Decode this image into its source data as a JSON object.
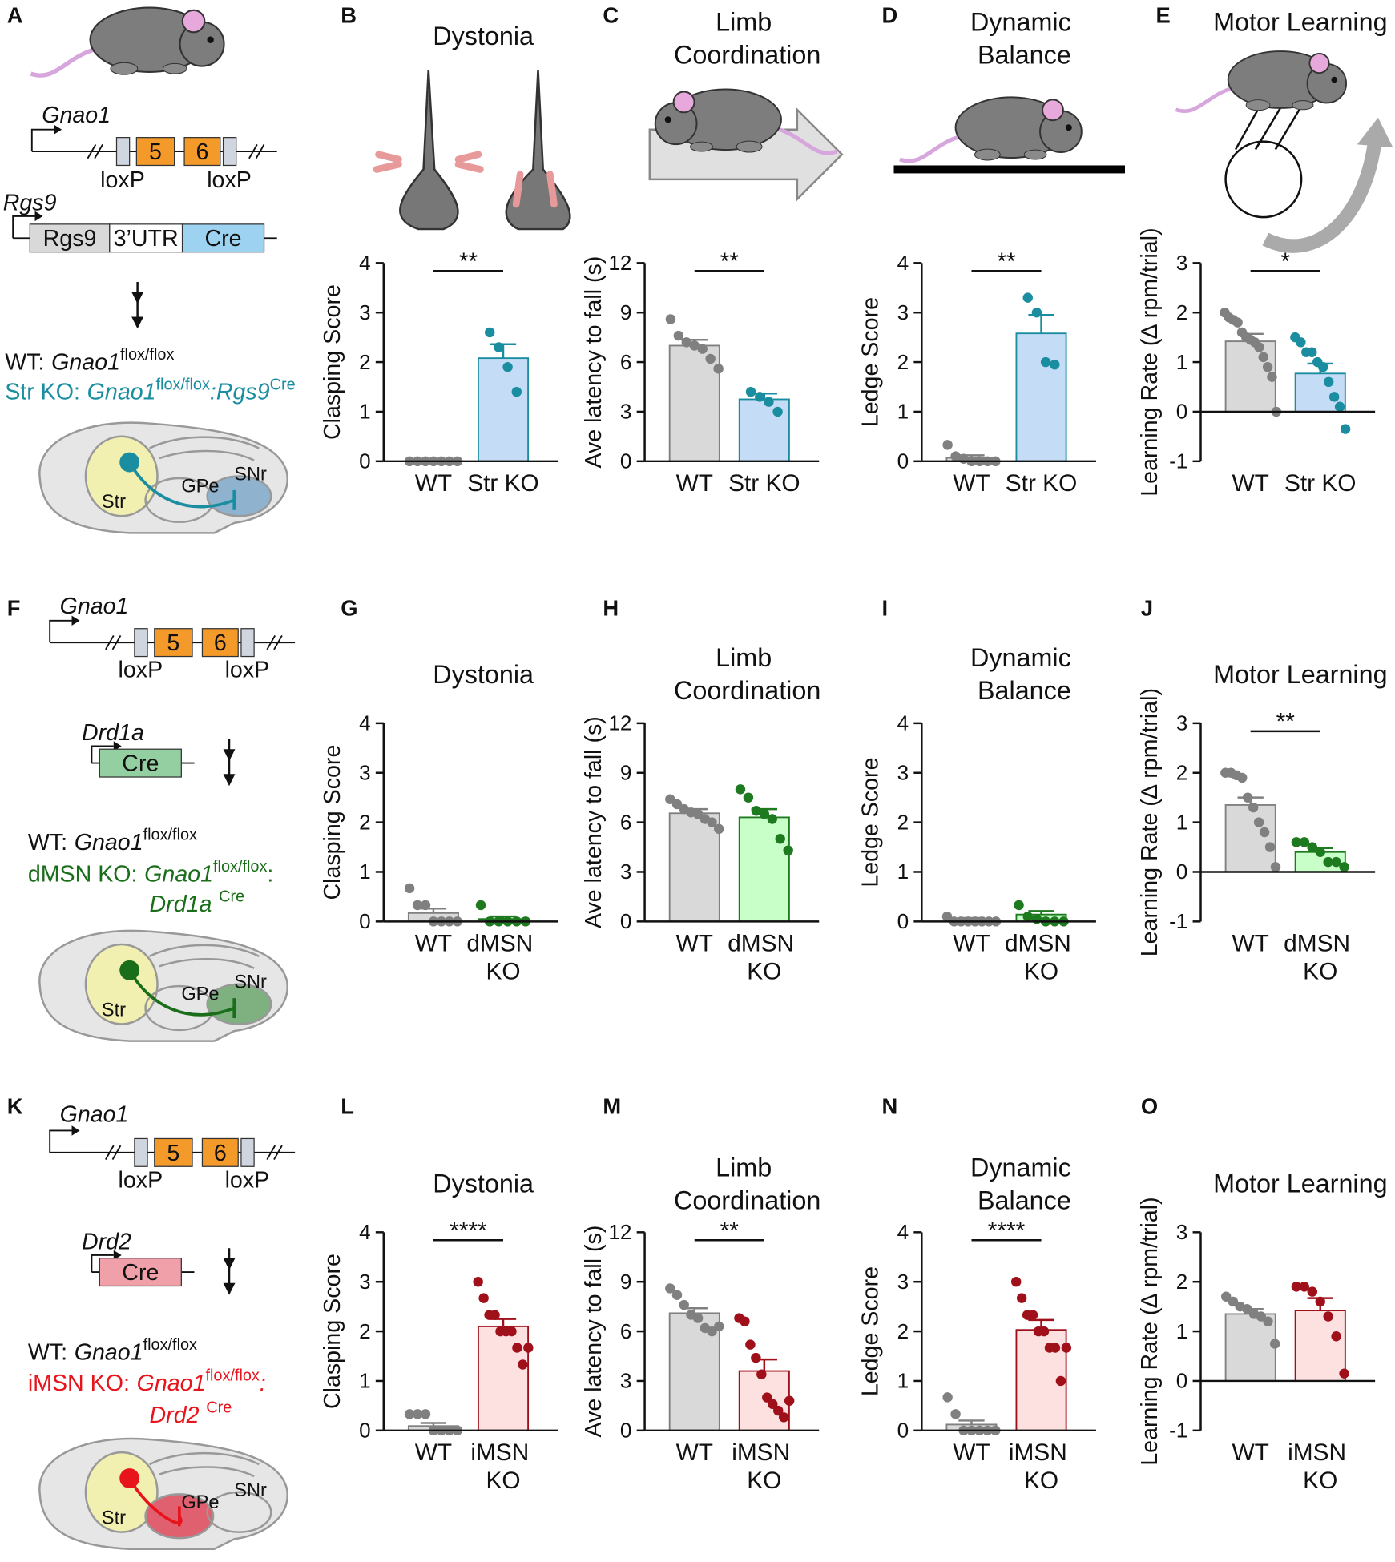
{
  "chart_data": [
    {
      "type": "bar",
      "panel": "B",
      "title": "Dystonia",
      "ylabel": "Clasping Score",
      "categories": [
        "WT",
        "Str KO"
      ],
      "values": [
        0,
        2.08
      ],
      "errors": [
        0,
        0.28
      ],
      "points": [
        [
          0,
          0,
          0,
          0,
          0,
          0,
          0
        ],
        [
          2.6,
          2.3,
          1.9,
          1.4
        ]
      ],
      "colors": [
        "#d9d9d9",
        "#c5dcf6"
      ],
      "edge_colors": [
        "#808080",
        "#1a8ea0"
      ],
      "ylim": [
        0,
        4
      ],
      "yticks": [
        0,
        1,
        2,
        3,
        4
      ],
      "significance": "**"
    },
    {
      "type": "bar",
      "panel": "C",
      "title": "Limb Coordination",
      "ylabel": "Ave latency to fall (s)",
      "categories": [
        "WT",
        "Str KO"
      ],
      "values": [
        7.0,
        3.75
      ],
      "errors": [
        0.35,
        0.35
      ],
      "points": [
        [
          8.6,
          7.6,
          7.2,
          7.0,
          6.8,
          6.2,
          5.6
        ],
        [
          4.2,
          3.9,
          3.6,
          3.0
        ]
      ],
      "colors": [
        "#d9d9d9",
        "#c5dcf6"
      ],
      "edge_colors": [
        "#808080",
        "#1a8ea0"
      ],
      "ylim": [
        0,
        12
      ],
      "yticks": [
        0,
        3,
        6,
        9,
        12
      ],
      "significance": "**"
    },
    {
      "type": "bar",
      "panel": "D",
      "title": "Dynamic Balance",
      "ylabel": "Ledge Score",
      "categories": [
        "WT",
        "Str KO"
      ],
      "values": [
        0.07,
        2.58
      ],
      "errors": [
        0.05,
        0.37
      ],
      "points": [
        [
          0.33,
          0.1,
          0.05,
          0,
          0,
          0,
          0
        ],
        [
          3.3,
          3.0,
          2.0,
          1.95
        ]
      ],
      "colors": [
        "#d9d9d9",
        "#c5dcf6"
      ],
      "edge_colors": [
        "#808080",
        "#1a8ea0"
      ],
      "ylim": [
        0,
        4
      ],
      "yticks": [
        0,
        1,
        2,
        3,
        4
      ],
      "significance": "**"
    },
    {
      "type": "bar",
      "panel": "E",
      "title": "Motor Learning",
      "ylabel": "Learning Rate (∆ rpm/trial)",
      "categories": [
        "WT",
        "Str KO"
      ],
      "values": [
        1.42,
        0.77
      ],
      "errors": [
        0.15,
        0.2
      ],
      "points": [
        [
          2.0,
          1.9,
          1.85,
          1.8,
          1.6,
          1.5,
          1.45,
          1.4,
          1.3,
          1.1,
          0.9,
          0.7,
          0.0
        ],
        [
          1.5,
          1.4,
          1.2,
          1.2,
          1.0,
          0.9,
          0.6,
          0.3,
          0.1,
          -0.35
        ]
      ],
      "colors": [
        "#d9d9d9",
        "#c5dcf6"
      ],
      "edge_colors": [
        "#808080",
        "#1a8ea0"
      ],
      "ylim": [
        -1,
        3
      ],
      "yticks": [
        -1,
        0,
        1,
        2,
        3
      ],
      "significance": "*"
    },
    {
      "type": "bar",
      "panel": "G",
      "title": "Dystonia",
      "ylabel": "Clasping Score",
      "categories": [
        "WT",
        "dMSN KO"
      ],
      "values": [
        0.17,
        0.05
      ],
      "errors": [
        0.09,
        0.05
      ],
      "points": [
        [
          0.67,
          0.33,
          0.33,
          0,
          0,
          0,
          0
        ],
        [
          0.33,
          0,
          0,
          0,
          0,
          0
        ]
      ],
      "colors": [
        "#d9d9d9",
        "#c8ffc8"
      ],
      "edge_colors": [
        "#808080",
        "#1e7a1e"
      ],
      "ylim": [
        0,
        4
      ],
      "yticks": [
        0,
        1,
        2,
        3,
        4
      ]
    },
    {
      "type": "bar",
      "panel": "H",
      "title": "Limb Coordination",
      "ylabel": "Ave latency to fall (s)",
      "categories": [
        "WT",
        "dMSN KO"
      ],
      "values": [
        6.55,
        6.3
      ],
      "errors": [
        0.25,
        0.5
      ],
      "points": [
        [
          7.4,
          7.1,
          6.8,
          6.6,
          6.5,
          6.2,
          6.0,
          5.6
        ],
        [
          8.0,
          7.5,
          6.7,
          6.5,
          6.2,
          5.0,
          4.3
        ]
      ],
      "colors": [
        "#d9d9d9",
        "#c8ffc8"
      ],
      "edge_colors": [
        "#808080",
        "#1e7a1e"
      ],
      "ylim": [
        0,
        12
      ],
      "yticks": [
        0,
        3,
        6,
        9,
        12
      ]
    },
    {
      "type": "bar",
      "panel": "I",
      "title": "Dynamic Balance",
      "ylabel": "Ledge Score",
      "categories": [
        "WT",
        "dMSN KO"
      ],
      "values": [
        0.04,
        0.14
      ],
      "errors": [
        0.03,
        0.07
      ],
      "points": [
        [
          0.1,
          0,
          0,
          0,
          0,
          0,
          0,
          0
        ],
        [
          0.33,
          0.1,
          0.05,
          0,
          0,
          0
        ]
      ],
      "colors": [
        "#d9d9d9",
        "#c8ffc8"
      ],
      "edge_colors": [
        "#808080",
        "#1e7a1e"
      ],
      "ylim": [
        0,
        4
      ],
      "yticks": [
        0,
        1,
        2,
        3,
        4
      ]
    },
    {
      "type": "bar",
      "panel": "J",
      "title": "Motor Learning",
      "ylabel": "Learning Rate (∆ rpm/trial)",
      "categories": [
        "WT",
        "dMSN KO"
      ],
      "values": [
        1.35,
        0.4
      ],
      "errors": [
        0.15,
        0.08
      ],
      "points": [
        [
          2.0,
          2.0,
          1.95,
          1.9,
          1.5,
          1.3,
          1.0,
          0.8,
          0.5,
          0.1
        ],
        [
          0.6,
          0.6,
          0.5,
          0.4,
          0.2,
          0.2,
          0.1
        ]
      ],
      "colors": [
        "#d9d9d9",
        "#c8ffc8"
      ],
      "edge_colors": [
        "#808080",
        "#1e7a1e"
      ],
      "ylim": [
        -1,
        3
      ],
      "yticks": [
        -1,
        0,
        1,
        2,
        3
      ],
      "significance": "**"
    },
    {
      "type": "bar",
      "panel": "L",
      "title": "Dystonia",
      "ylabel": "Clasping Score",
      "categories": [
        "WT",
        "iMSN KO"
      ],
      "values": [
        0.09,
        2.1
      ],
      "errors": [
        0.06,
        0.15
      ],
      "points": [
        [
          0.33,
          0.33,
          0.33,
          0,
          0,
          0,
          0
        ],
        [
          3.0,
          2.67,
          2.33,
          2.33,
          2.0,
          2.0,
          2.0,
          1.67,
          1.33,
          1.67
        ]
      ],
      "colors": [
        "#d9d9d9",
        "#fde0e0"
      ],
      "edge_colors": [
        "#808080",
        "#a0101a"
      ],
      "ylim": [
        0,
        4
      ],
      "yticks": [
        0,
        1,
        2,
        3,
        4
      ],
      "significance": "****"
    },
    {
      "type": "bar",
      "panel": "M",
      "title": "Limb Coordination",
      "ylabel": "Ave latency to fall (s)",
      "categories": [
        "WT",
        "iMSN KO"
      ],
      "values": [
        7.1,
        3.6
      ],
      "errors": [
        0.3,
        0.7
      ],
      "points": [
        [
          8.6,
          8.2,
          7.6,
          7.0,
          6.8,
          6.2,
          6.0,
          6.3
        ],
        [
          6.8,
          6.6,
          5.2,
          4.4,
          3.4,
          2.0,
          1.6,
          1.2,
          0.8,
          1.8
        ]
      ],
      "colors": [
        "#d9d9d9",
        "#fde0e0"
      ],
      "edge_colors": [
        "#808080",
        "#a0101a"
      ],
      "ylim": [
        0,
        12
      ],
      "yticks": [
        0,
        3,
        6,
        9,
        12
      ],
      "significance": "**"
    },
    {
      "type": "bar",
      "panel": "N",
      "title": "Dynamic Balance",
      "ylabel": "Ledge Score",
      "categories": [
        "WT",
        "iMSN KO"
      ],
      "values": [
        0.12,
        2.03
      ],
      "errors": [
        0.08,
        0.2
      ],
      "points": [
        [
          0.67,
          0.33,
          0,
          0,
          0,
          0,
          0
        ],
        [
          3.0,
          2.67,
          2.33,
          2.33,
          2.0,
          2.0,
          1.67,
          1.67,
          1.0,
          1.67
        ]
      ],
      "colors": [
        "#d9d9d9",
        "#fde0e0"
      ],
      "edge_colors": [
        "#808080",
        "#a0101a"
      ],
      "ylim": [
        0,
        4
      ],
      "yticks": [
        0,
        1,
        2,
        3,
        4
      ],
      "significance": "****"
    },
    {
      "type": "bar",
      "panel": "O",
      "title": "Motor Learning",
      "ylabel": "Learning Rate (∆ rpm/trial)",
      "categories": [
        "WT",
        "iMSN KO"
      ],
      "values": [
        1.35,
        1.42
      ],
      "errors": [
        0.1,
        0.25
      ],
      "points": [
        [
          1.7,
          1.6,
          1.5,
          1.45,
          1.35,
          1.3,
          1.2,
          0.75
        ],
        [
          1.9,
          1.9,
          1.8,
          1.6,
          1.3,
          0.9,
          0.15
        ]
      ],
      "colors": [
        "#d9d9d9",
        "#fde0e0"
      ],
      "edge_colors": [
        "#808080",
        "#a0101a"
      ],
      "ylim": [
        -1,
        3
      ],
      "yticks": [
        -1,
        0,
        1,
        2,
        3
      ]
    }
  ],
  "diagrams": [
    {
      "panel": "A",
      "gene": "Gnao1",
      "exons": [
        "5",
        "6"
      ],
      "lox": [
        "loxP",
        "loxP"
      ],
      "driver": "Rgs9",
      "driver_boxes": [
        "Rgs9",
        "3’UTR",
        "Cre"
      ],
      "driver_colors": [
        "#d9d9d9",
        "#ffffff",
        "#9dd3f0"
      ],
      "ko_color": "#1a8ea0",
      "region_color": "#8fb3cf",
      "wt": [
        {
          "text": "WT:"
        },
        {
          "text": "Gnao1",
          "italic": true
        },
        {
          "text": "flox/flox",
          "sup": true
        }
      ],
      "ko": [
        [
          {
            "text": "Str KO:"
          },
          {
            "text": "Gnao1",
            "italic": true
          },
          {
            "text": "flox/flox",
            "sup": true
          },
          {
            "text": ":Rgs9",
            "italic": true
          },
          {
            "text": "Cre",
            "sup": true
          }
        ]
      ],
      "brain": [
        "Str",
        "GPe",
        "SNr"
      ]
    },
    {
      "panel": "F",
      "gene": "Gnao1",
      "exons": [
        "5",
        "6"
      ],
      "lox": [
        "loxP",
        "loxP"
      ],
      "driver": "Drd1a",
      "driver_boxes": [
        "Cre"
      ],
      "driver_colors": [
        "#93cfa0"
      ],
      "ko_color": "#1a6e1a",
      "region_color": "#7fb07f",
      "wt": [
        {
          "text": "WT:"
        },
        {
          "text": "Gnao1",
          "italic": true
        },
        {
          "text": "flox/flox",
          "sup": true
        }
      ],
      "ko": [
        [
          {
            "text": "dMSN KO:"
          },
          {
            "text": "Gnao1",
            "italic": true
          },
          {
            "text": "flox/flox",
            "sup": true
          },
          {
            "text": ":"
          }
        ],
        [
          {
            "text": "Drd1a",
            "italic": true
          },
          {
            "text": "Cre",
            "sup": true
          }
        ]
      ],
      "brain": [
        "Str",
        "GPe",
        "SNr"
      ]
    },
    {
      "panel": "K",
      "gene": "Gnao1",
      "exons": [
        "5",
        "6"
      ],
      "lox": [
        "loxP",
        "loxP"
      ],
      "driver": "Drd2",
      "driver_boxes": [
        "Cre"
      ],
      "driver_colors": [
        "#f0a0a8"
      ],
      "ko_color": "#e8141c",
      "region_color": "#e06070",
      "wt": [
        {
          "text": "WT:"
        },
        {
          "text": "Gnao1",
          "italic": true
        },
        {
          "text": "flox/flox",
          "sup": true
        }
      ],
      "ko": [
        [
          {
            "text": "iMSN KO:"
          },
          {
            "text": "Gnao1",
            "italic": true
          },
          {
            "text": "flox/flox",
            "sup": true
          },
          {
            "text": ":",
            "italic": true
          }
        ],
        [
          {
            "text": "Drd2",
            "italic": true
          },
          {
            "text": "Cre",
            "sup": true
          }
        ]
      ],
      "brain": [
        "Str",
        "GPe",
        "SNr"
      ]
    }
  ]
}
